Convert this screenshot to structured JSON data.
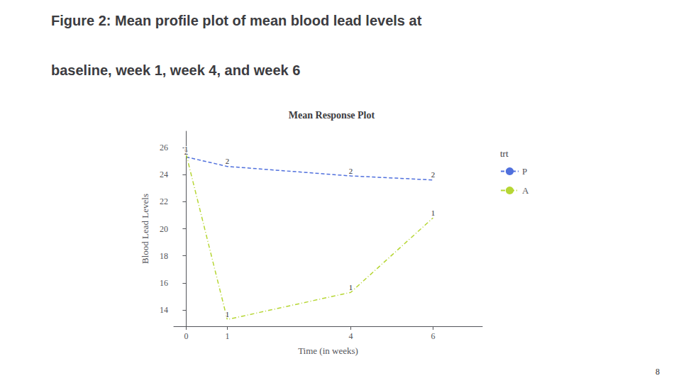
{
  "chart_data": {
    "type": "line",
    "title": "Mean Response Plot",
    "annotations": [
      {
        "text": "Figure 2: Mean profile plot of mean blood lead levels at"
      },
      {
        "text": "baseline, week 1, week 4, and week 6"
      },
      {
        "text": "8"
      }
    ],
    "x_label": "Time (in weeks)",
    "y_label": "Blood Lead Levels",
    "xlim": [
      -0.3,
      7.2
    ],
    "xticks": [
      0,
      1,
      4,
      6
    ],
    "ylim": [
      12.8,
      27.2
    ],
    "yticks": [
      14,
      16,
      18,
      20,
      22,
      24,
      26
    ],
    "grid": false,
    "legend": "right",
    "legend_title": "trt",
    "series": [
      {
        "name": "P",
        "x": [
          0,
          1,
          4,
          6
        ],
        "values": [
          25.3,
          24.6,
          23.9,
          23.6
        ],
        "line_style": "dashed",
        "marker": "2"
      },
      {
        "name": "A",
        "x": [
          0,
          1,
          4,
          6
        ],
        "values": [
          25.5,
          13.3,
          15.3,
          20.8
        ],
        "line_style": "dashdot",
        "marker": "1"
      }
    ]
  }
}
